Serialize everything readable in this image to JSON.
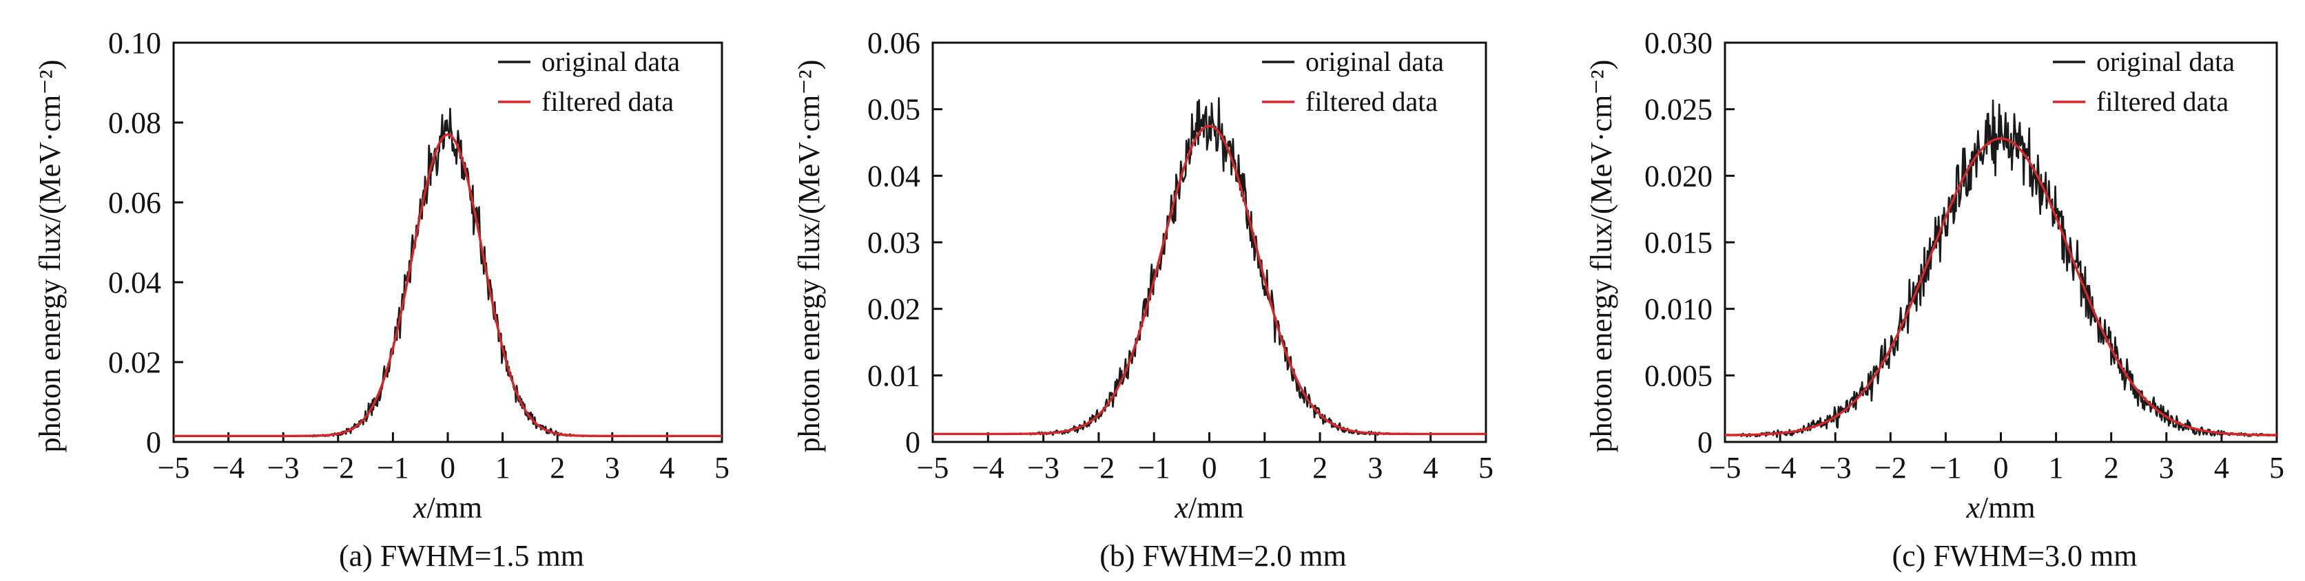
{
  "chart_data": [
    {
      "type": "line",
      "caption": "(a) FWHM=1.5 mm",
      "xlabel_var": "x",
      "xlabel_unit": "/mm",
      "ylabel": "photon energy flux/(MeV·cm⁻²)",
      "xlim": [
        -5,
        5
      ],
      "ylim": [
        0,
        0.1
      ],
      "xticks": [
        -5,
        -4,
        -3,
        -2,
        -1,
        0,
        1,
        2,
        3,
        4,
        5
      ],
      "xtick_labels": [
        "−5",
        "−4",
        "−3",
        "−2",
        "−1",
        "0",
        "1",
        "2",
        "3",
        "4",
        "5"
      ],
      "yticks": [
        0,
        0.02,
        0.04,
        0.06,
        0.08,
        0.1
      ],
      "ytick_labels": [
        "0",
        "0.02",
        "0.04",
        "0.06",
        "0.08",
        "0.10"
      ],
      "grid": false,
      "legend_position": "top-right",
      "series": [
        {
          "name": "original data",
          "color": "#1a1a1a",
          "kind": "noisy-gaussian",
          "peak": 0.077,
          "fwhm": 1.5,
          "baseline": 0.0015,
          "noise_rel": 0.07,
          "seed": 11
        },
        {
          "name": "filtered data",
          "color": "#d62728",
          "kind": "gaussian",
          "peak": 0.077,
          "fwhm": 1.5,
          "baseline": 0.0015
        }
      ]
    },
    {
      "type": "line",
      "caption": "(b) FWHM=2.0 mm",
      "xlabel_var": "x",
      "xlabel_unit": "/mm",
      "ylabel": "photon energy flux/(MeV·cm⁻²)",
      "xlim": [
        -5,
        5
      ],
      "ylim": [
        0,
        0.06
      ],
      "xticks": [
        -5,
        -4,
        -3,
        -2,
        -1,
        0,
        1,
        2,
        3,
        4,
        5
      ],
      "xtick_labels": [
        "−5",
        "−4",
        "−3",
        "−2",
        "−1",
        "0",
        "1",
        "2",
        "3",
        "4",
        "5"
      ],
      "yticks": [
        0,
        0.01,
        0.02,
        0.03,
        0.04,
        0.05,
        0.06
      ],
      "ytick_labels": [
        "0",
        "0.01",
        "0.02",
        "0.03",
        "0.04",
        "0.05",
        "0.06"
      ],
      "grid": false,
      "legend_position": "top-right",
      "series": [
        {
          "name": "original data",
          "color": "#1a1a1a",
          "kind": "noisy-gaussian",
          "peak": 0.0475,
          "fwhm": 2.0,
          "baseline": 0.0012,
          "noise_rel": 0.08,
          "seed": 23
        },
        {
          "name": "filtered data",
          "color": "#d62728",
          "kind": "gaussian",
          "peak": 0.0475,
          "fwhm": 2.0,
          "baseline": 0.0012
        }
      ]
    },
    {
      "type": "line",
      "caption": "(c) FWHM=3.0 mm",
      "xlabel_var": "x",
      "xlabel_unit": "/mm",
      "ylabel": "photon energy flux/(MeV·cm⁻²)",
      "xlim": [
        -5,
        5
      ],
      "ylim": [
        0,
        0.03
      ],
      "xticks": [
        -5,
        -4,
        -3,
        -2,
        -1,
        0,
        1,
        2,
        3,
        4,
        5
      ],
      "xtick_labels": [
        "−5",
        "−4",
        "−3",
        "−2",
        "−1",
        "0",
        "1",
        "2",
        "3",
        "4",
        "5"
      ],
      "yticks": [
        0,
        0.005,
        0.01,
        0.015,
        0.02,
        0.025,
        0.03
      ],
      "ytick_labels": [
        "0",
        "0.005",
        "0.010",
        "0.015",
        "0.020",
        "0.025",
        "0.030"
      ],
      "grid": false,
      "legend_position": "top-right",
      "series": [
        {
          "name": "original data",
          "color": "#1a1a1a",
          "kind": "noisy-gaussian",
          "peak": 0.0228,
          "fwhm": 3.0,
          "baseline": 0.0005,
          "noise_rel": 0.1,
          "seed": 37
        },
        {
          "name": "filtered data",
          "color": "#d62728",
          "kind": "gaussian",
          "peak": 0.0228,
          "fwhm": 3.0,
          "baseline": 0.0005
        }
      ]
    }
  ]
}
